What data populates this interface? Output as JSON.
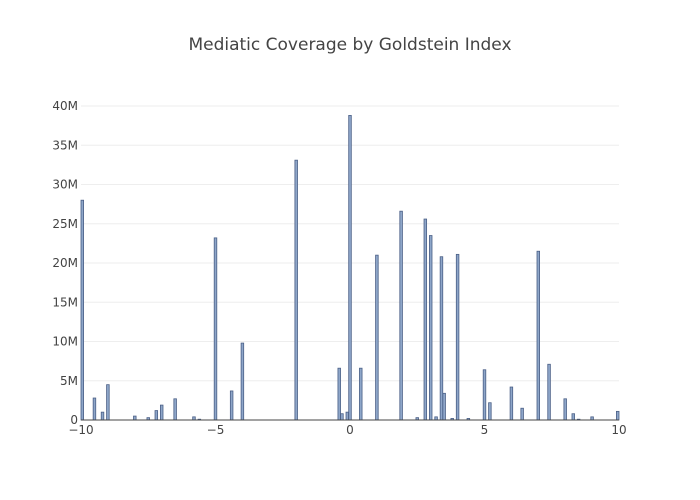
{
  "chart_data": {
    "type": "bar",
    "title": "Mediatic Coverage by Goldstein Index",
    "xlabel": "",
    "ylabel": "",
    "xlim": [
      -10,
      10
    ],
    "ylim": [
      0,
      40000000
    ],
    "x_ticks": [
      -10,
      -5,
      0,
      5,
      10
    ],
    "x_tick_labels": [
      "−10",
      "−5",
      "0",
      "5",
      "10"
    ],
    "y_ticks": [
      0,
      5000000,
      10000000,
      15000000,
      20000000,
      25000000,
      30000000,
      35000000,
      40000000
    ],
    "y_tick_labels": [
      "0",
      "5M",
      "10M",
      "15M",
      "20M",
      "25M",
      "30M",
      "35M",
      "40M"
    ],
    "grid": true,
    "colors": {
      "bar_fill": "#8ea6c9",
      "bar_stroke": "#4a5f86",
      "grid": "#eeeeee",
      "text": "#444444"
    },
    "x": [
      -10,
      -9.5,
      -9.2,
      -9,
      -8,
      -7.5,
      -7.2,
      -7,
      -6.5,
      -5.8,
      -5.6,
      -5,
      -4.4,
      -4,
      -2,
      -0.4,
      -0.3,
      -0.1,
      0,
      0.4,
      1,
      1.9,
      2.5,
      2.8,
      3,
      3.2,
      3.4,
      3.5,
      3.8,
      4,
      4.4,
      5,
      5.2,
      6,
      6.4,
      7,
      7.4,
      8,
      8.3,
      8.5,
      9,
      10
    ],
    "values": [
      28000000,
      2800000,
      1000000,
      4500000,
      500000,
      300000,
      1200000,
      1900000,
      2700000,
      400000,
      100000,
      23200000,
      3700000,
      9800000,
      33100000,
      6600000,
      800000,
      1000000,
      38800000,
      6600000,
      21000000,
      26600000,
      300000,
      25600000,
      23500000,
      400000,
      20800000,
      3400000,
      200000,
      21100000,
      200000,
      6400000,
      2200000,
      4200000,
      1500000,
      21500000,
      7100000,
      2700000,
      800000,
      100000,
      400000,
      1100000
    ]
  }
}
